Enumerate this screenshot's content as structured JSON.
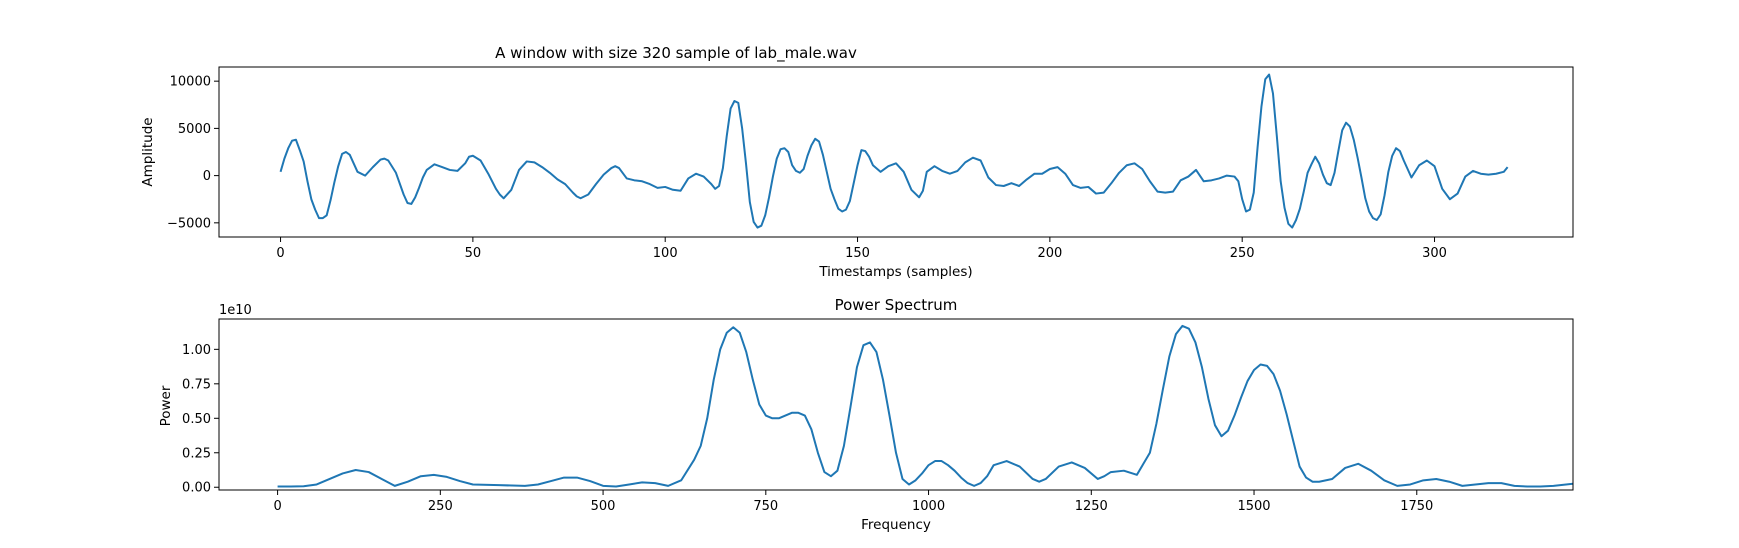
{
  "chart_data": [
    {
      "type": "line",
      "title": "A window with size 320 sample of lab_male.wav",
      "xlabel": "Timestamps (samples)",
      "ylabel": "Amplitude",
      "xlim": [
        -16,
        336
      ],
      "ylim": [
        -6500,
        11500
      ],
      "xticks": [
        0,
        50,
        100,
        150,
        200,
        250,
        300
      ],
      "yticks": [
        -5000,
        0,
        5000,
        10000
      ],
      "xtick_labels": [
        "0",
        "50",
        "100",
        "150",
        "200",
        "250",
        "300"
      ],
      "ytick_labels": [
        "−5000",
        "0",
        "5000",
        "10000"
      ],
      "grid": false,
      "color": "#1f77b4",
      "series": [
        {
          "x": [
            0,
            1,
            2,
            3,
            4,
            5,
            6,
            7,
            8,
            9,
            10,
            11,
            12,
            13,
            14,
            15,
            16,
            17,
            18,
            19,
            20,
            22,
            24,
            26,
            27,
            28,
            30,
            32,
            33,
            34,
            35,
            36,
            37,
            38,
            40,
            42,
            44,
            46,
            48,
            49,
            50,
            52,
            54,
            56,
            57,
            58,
            60,
            62,
            64,
            66,
            68,
            70,
            72,
            74,
            76,
            77,
            78,
            80,
            82,
            84,
            86,
            87,
            88,
            90,
            92,
            94,
            96,
            98,
            100,
            102,
            104,
            106,
            108,
            110,
            112,
            113,
            114,
            115,
            116,
            117,
            118,
            119,
            120,
            121,
            122,
            123,
            124,
            125,
            126,
            127,
            128,
            129,
            130,
            131,
            132,
            133,
            134,
            135,
            136,
            137,
            138,
            139,
            140,
            141,
            142,
            143,
            144,
            145,
            146,
            147,
            148,
            149,
            150,
            151,
            152,
            153,
            154,
            156,
            158,
            160,
            162,
            164,
            166,
            167,
            168,
            170,
            172,
            174,
            176,
            178,
            180,
            182,
            184,
            186,
            188,
            190,
            192,
            194,
            196,
            198,
            200,
            202,
            204,
            206,
            208,
            210,
            212,
            214,
            216,
            218,
            220,
            222,
            224,
            226,
            228,
            230,
            232,
            234,
            236,
            238,
            240,
            242,
            244,
            246,
            248,
            249,
            250,
            251,
            252,
            253,
            254,
            255,
            256,
            257,
            258,
            259,
            260,
            261,
            262,
            263,
            264,
            265,
            266,
            267,
            268,
            269,
            270,
            271,
            272,
            273,
            274,
            275,
            276,
            277,
            278,
            279,
            280,
            281,
            282,
            283,
            284,
            285,
            286,
            287,
            288,
            289,
            290,
            291,
            292,
            294,
            296,
            298,
            300,
            302,
            304,
            306,
            308,
            310,
            312,
            314,
            316,
            318,
            319
          ],
          "y": [
            400,
            1800,
            2900,
            3700,
            3800,
            2700,
            1500,
            -600,
            -2500,
            -3600,
            -4500,
            -4500,
            -4200,
            -2600,
            -700,
            1000,
            2300,
            2500,
            2200,
            1300,
            400,
            0,
            900,
            1700,
            1800,
            1600,
            300,
            -2000,
            -2900,
            -3000,
            -2300,
            -1300,
            -200,
            600,
            1200,
            900,
            600,
            500,
            1300,
            2000,
            2100,
            1600,
            200,
            -1400,
            -2000,
            -2400,
            -1500,
            600,
            1500,
            1400,
            900,
            300,
            -400,
            -900,
            -1800,
            -2200,
            -2400,
            -2000,
            -900,
            100,
            800,
            1000,
            800,
            -300,
            -500,
            -600,
            -900,
            -1300,
            -1200,
            -1500,
            -1600,
            -300,
            200,
            -100,
            -900,
            -1400,
            -1100,
            800,
            4200,
            7100,
            7900,
            7700,
            5000,
            1300,
            -2800,
            -4900,
            -5500,
            -5300,
            -4200,
            -2300,
            -100,
            1800,
            2800,
            2900,
            2500,
            1100,
            500,
            300,
            700,
            2100,
            3200,
            3900,
            3600,
            2200,
            400,
            -1400,
            -2500,
            -3500,
            -3800,
            -3600,
            -2700,
            -800,
            1100,
            2700,
            2600,
            2000,
            1100,
            400,
            1000,
            1300,
            400,
            -1500,
            -2300,
            -1600,
            400,
            1000,
            500,
            200,
            500,
            1400,
            1900,
            1600,
            -200,
            -1000,
            -1100,
            -800,
            -1100,
            -400,
            200,
            200,
            700,
            900,
            200,
            -1000,
            -1300,
            -1200,
            -1900,
            -1800,
            -800,
            300,
            1100,
            1300,
            700,
            -600,
            -1700,
            -1800,
            -1700,
            -500,
            -100,
            600,
            -600,
            -500,
            -300,
            0,
            -100,
            -600,
            -2500,
            -3800,
            -3600,
            -1800,
            3000,
            7300,
            10200,
            10700,
            8700,
            4200,
            -600,
            -3400,
            -5100,
            -5500,
            -4700,
            -3500,
            -1700,
            300,
            1200,
            2000,
            1300,
            100,
            -800,
            -1000,
            300,
            2600,
            4800,
            5600,
            5200,
            3800,
            1900,
            -200,
            -2400,
            -3800,
            -4500,
            -4700,
            -4100,
            -2100,
            400,
            2100,
            2900,
            2600,
            1600,
            -200,
            1100,
            1600,
            1000,
            -1400,
            -2500,
            -1900,
            -100,
            500,
            200,
            100,
            200,
            400,
            900
          ]
        }
      ]
    },
    {
      "type": "line",
      "title": "Power Spectrum",
      "xlabel": "Frequency",
      "ylabel": "Power",
      "y_offset_label": "1e10",
      "xlim": [
        -90,
        1990
      ],
      "ylim": [
        -0.02,
        1.22
      ],
      "y_unit_scale": 10000000000,
      "xticks": [
        0,
        250,
        500,
        750,
        1000,
        1250,
        1500,
        1750
      ],
      "yticks": [
        0,
        0.25,
        0.5,
        0.75,
        1.0
      ],
      "xtick_labels": [
        "0",
        "250",
        "500",
        "750",
        "1000",
        "1250",
        "1500",
        "1750"
      ],
      "ytick_labels": [
        "0.00",
        "0.25",
        "0.50",
        "0.75",
        "1.00"
      ],
      "grid": false,
      "color": "#1f77b4",
      "series": [
        {
          "x": [
            0,
            20,
            40,
            60,
            80,
            100,
            120,
            140,
            160,
            180,
            200,
            220,
            240,
            260,
            280,
            300,
            340,
            380,
            400,
            420,
            440,
            460,
            480,
            500,
            520,
            540,
            560,
            580,
            600,
            620,
            640,
            650,
            660,
            670,
            680,
            690,
            700,
            710,
            720,
            730,
            740,
            750,
            760,
            770,
            780,
            790,
            800,
            810,
            820,
            830,
            840,
            850,
            860,
            870,
            880,
            890,
            900,
            910,
            920,
            930,
            940,
            950,
            960,
            970,
            980,
            990,
            1000,
            1010,
            1020,
            1030,
            1040,
            1050,
            1060,
            1070,
            1080,
            1090,
            1100,
            1120,
            1140,
            1160,
            1170,
            1180,
            1200,
            1220,
            1240,
            1260,
            1270,
            1280,
            1300,
            1320,
            1340,
            1350,
            1360,
            1370,
            1380,
            1390,
            1400,
            1410,
            1420,
            1430,
            1440,
            1450,
            1460,
            1470,
            1480,
            1490,
            1500,
            1510,
            1520,
            1530,
            1540,
            1550,
            1560,
            1570,
            1580,
            1590,
            1600,
            1620,
            1640,
            1660,
            1680,
            1700,
            1720,
            1740,
            1760,
            1780,
            1800,
            1820,
            1840,
            1860,
            1880,
            1900,
            1920,
            1940,
            1960,
            1990
          ],
          "y": [
            0.005,
            0.005,
            0.007,
            0.02,
            0.06,
            0.1,
            0.125,
            0.11,
            0.06,
            0.01,
            0.04,
            0.08,
            0.09,
            0.075,
            0.045,
            0.02,
            0.015,
            0.01,
            0.02,
            0.045,
            0.07,
            0.07,
            0.045,
            0.01,
            0.005,
            0.02,
            0.035,
            0.03,
            0.01,
            0.05,
            0.2,
            0.3,
            0.5,
            0.78,
            1.0,
            1.12,
            1.16,
            1.12,
            0.98,
            0.78,
            0.6,
            0.52,
            0.5,
            0.5,
            0.52,
            0.54,
            0.54,
            0.52,
            0.42,
            0.25,
            0.11,
            0.08,
            0.12,
            0.3,
            0.58,
            0.87,
            1.03,
            1.05,
            0.98,
            0.78,
            0.52,
            0.25,
            0.06,
            0.02,
            0.05,
            0.1,
            0.16,
            0.19,
            0.19,
            0.16,
            0.12,
            0.07,
            0.03,
            0.01,
            0.03,
            0.08,
            0.16,
            0.19,
            0.15,
            0.06,
            0.04,
            0.06,
            0.15,
            0.18,
            0.14,
            0.06,
            0.08,
            0.11,
            0.12,
            0.09,
            0.25,
            0.46,
            0.71,
            0.95,
            1.11,
            1.17,
            1.15,
            1.05,
            0.87,
            0.64,
            0.45,
            0.37,
            0.41,
            0.52,
            0.65,
            0.77,
            0.85,
            0.89,
            0.88,
            0.82,
            0.7,
            0.53,
            0.34,
            0.15,
            0.07,
            0.04,
            0.04,
            0.06,
            0.14,
            0.17,
            0.12,
            0.05,
            0.01,
            0.02,
            0.05,
            0.06,
            0.04,
            0.01,
            0.02,
            0.03,
            0.03,
            0.01,
            0.005,
            0.005,
            0.01,
            0.025
          ]
        }
      ]
    }
  ]
}
